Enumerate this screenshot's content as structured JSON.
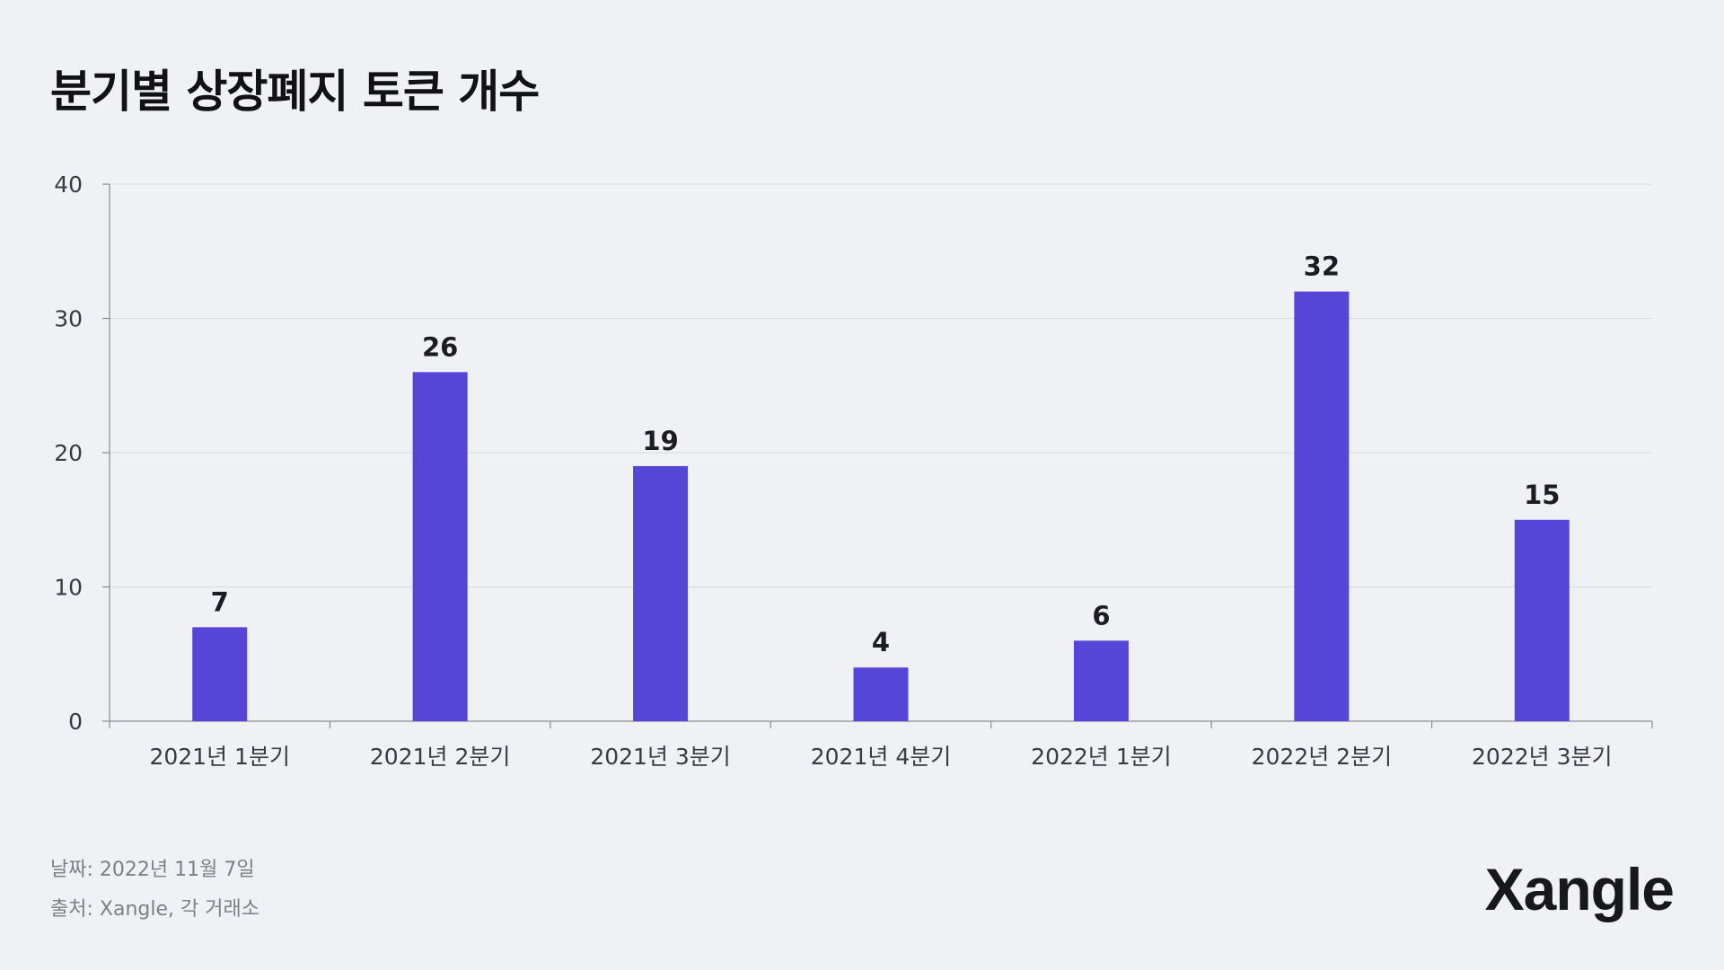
{
  "title": "분기별 상장폐지 토큰 개수",
  "chart_data": {
    "type": "bar",
    "categories": [
      "2021년 1분기",
      "2021년 2분기",
      "2021년 3분기",
      "2021년 4분기",
      "2022년 1분기",
      "2022년 2분기",
      "2022년 3분기"
    ],
    "values": [
      7,
      26,
      19,
      4,
      6,
      32,
      15
    ],
    "title": "분기별 상장폐지 토큰 개수",
    "xlabel": "",
    "ylabel": "",
    "ylim": [
      0,
      40
    ],
    "yticks": [
      0,
      10,
      20,
      30,
      40
    ],
    "grid": true,
    "data_labels": true,
    "bar_color": "#5546d8"
  },
  "footer": {
    "date": "날짜: 2022년 11월 7일",
    "source": "출처: Xangle, 각 거래소"
  },
  "brand": {
    "logo": "Xangle"
  }
}
